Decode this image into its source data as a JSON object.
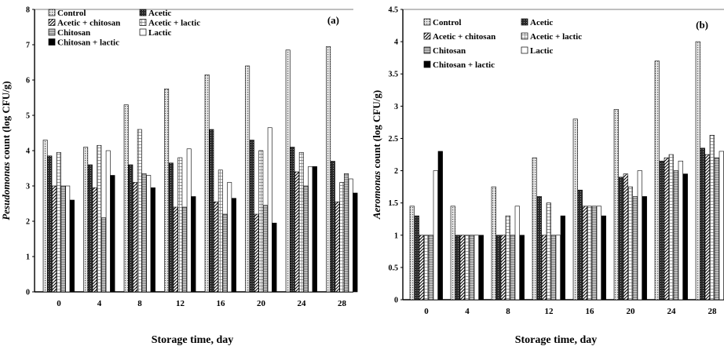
{
  "figure": {
    "background": "#ffffff",
    "ink": "#000000"
  },
  "series_styles": [
    {
      "name": "Control",
      "fill": "#d8d8d8",
      "pattern": "dots"
    },
    {
      "name": "Acetic",
      "fill": "#3a3a3a",
      "pattern": "dense"
    },
    {
      "name": "Acetic + chitosan",
      "fill": "#7a7a7a",
      "pattern": "diag"
    },
    {
      "name": "Acetic + lactic",
      "fill": "#ffffff",
      "pattern": "grid"
    },
    {
      "name": "Chitosan",
      "fill": "#a8a8a8",
      "pattern": "hlines"
    },
    {
      "name": "Lactic",
      "fill": "#ffffff",
      "pattern": "none"
    },
    {
      "name": "Chitosan + lactic",
      "fill": "#000000",
      "pattern": "solid"
    }
  ],
  "chart_data": [
    {
      "type": "bar",
      "panel": "(a)",
      "ylabel": "Pesudomonas count (log CFU/g)",
      "xlabel": "Storage time, day",
      "categories": [
        "0",
        "4",
        "8",
        "12",
        "16",
        "20",
        "24",
        "28"
      ],
      "ylim": [
        0,
        8
      ],
      "yticks": [
        "0",
        "1",
        "2",
        "3",
        "4",
        "5",
        "6",
        "7",
        "8"
      ],
      "legend_position": "top-left",
      "series": [
        {
          "name": "Control",
          "values": [
            4.3,
            4.1,
            5.3,
            5.75,
            6.15,
            6.4,
            6.85,
            6.95
          ]
        },
        {
          "name": "Acetic",
          "values": [
            3.85,
            3.6,
            3.6,
            3.65,
            4.6,
            4.3,
            4.1,
            3.7
          ]
        },
        {
          "name": "Acetic + chitosan",
          "values": [
            3.0,
            2.95,
            3.1,
            2.4,
            2.55,
            2.2,
            3.4,
            2.55
          ]
        },
        {
          "name": "Acetic + lactic",
          "values": [
            3.95,
            4.15,
            4.6,
            3.8,
            3.45,
            4.0,
            3.95,
            3.1
          ]
        },
        {
          "name": "Chitosan",
          "values": [
            3.0,
            2.1,
            3.35,
            2.4,
            2.2,
            2.45,
            3.0,
            3.35
          ]
        },
        {
          "name": "Lactic",
          "values": [
            3.0,
            4.0,
            3.3,
            4.05,
            3.1,
            4.65,
            3.55,
            3.2
          ]
        },
        {
          "name": "Chitosan + lactic",
          "values": [
            2.6,
            3.3,
            2.95,
            2.7,
            2.65,
            1.95,
            3.55,
            2.8
          ]
        }
      ]
    },
    {
      "type": "bar",
      "panel": "(b)",
      "ylabel": "Aeromonas count (log CFU/g)",
      "xlabel": "Storage time, day",
      "categories": [
        "0",
        "4",
        "8",
        "12",
        "16",
        "20",
        "24",
        "28"
      ],
      "ylim": [
        0,
        4.5
      ],
      "yticks": [
        "0",
        "0.5",
        "1",
        "1.5",
        "2",
        "2.5",
        "3",
        "3.5",
        "4",
        "4.5"
      ],
      "legend_position": "top-left",
      "series": [
        {
          "name": "Control",
          "values": [
            1.45,
            1.45,
            1.75,
            2.2,
            2.8,
            2.95,
            3.7,
            4.0
          ]
        },
        {
          "name": "Acetic",
          "values": [
            1.3,
            1.0,
            1.0,
            1.6,
            1.7,
            1.9,
            2.15,
            2.35
          ]
        },
        {
          "name": "Acetic + chitosan",
          "values": [
            1.0,
            1.0,
            1.0,
            1.0,
            1.45,
            1.95,
            2.2,
            2.25
          ]
        },
        {
          "name": "Acetic + lactic",
          "values": [
            1.0,
            1.0,
            1.3,
            1.5,
            1.45,
            1.75,
            2.25,
            2.55
          ]
        },
        {
          "name": "Chitosan",
          "values": [
            1.0,
            1.0,
            1.0,
            1.0,
            1.45,
            1.6,
            2.0,
            2.2
          ]
        },
        {
          "name": "Lactic",
          "values": [
            2.0,
            1.0,
            1.45,
            1.0,
            1.45,
            2.0,
            2.15,
            2.3
          ]
        },
        {
          "name": "Chitosan + lactic",
          "values": [
            2.3,
            1.0,
            1.0,
            1.3,
            1.3,
            1.6,
            1.95,
            2.3
          ]
        }
      ]
    }
  ]
}
